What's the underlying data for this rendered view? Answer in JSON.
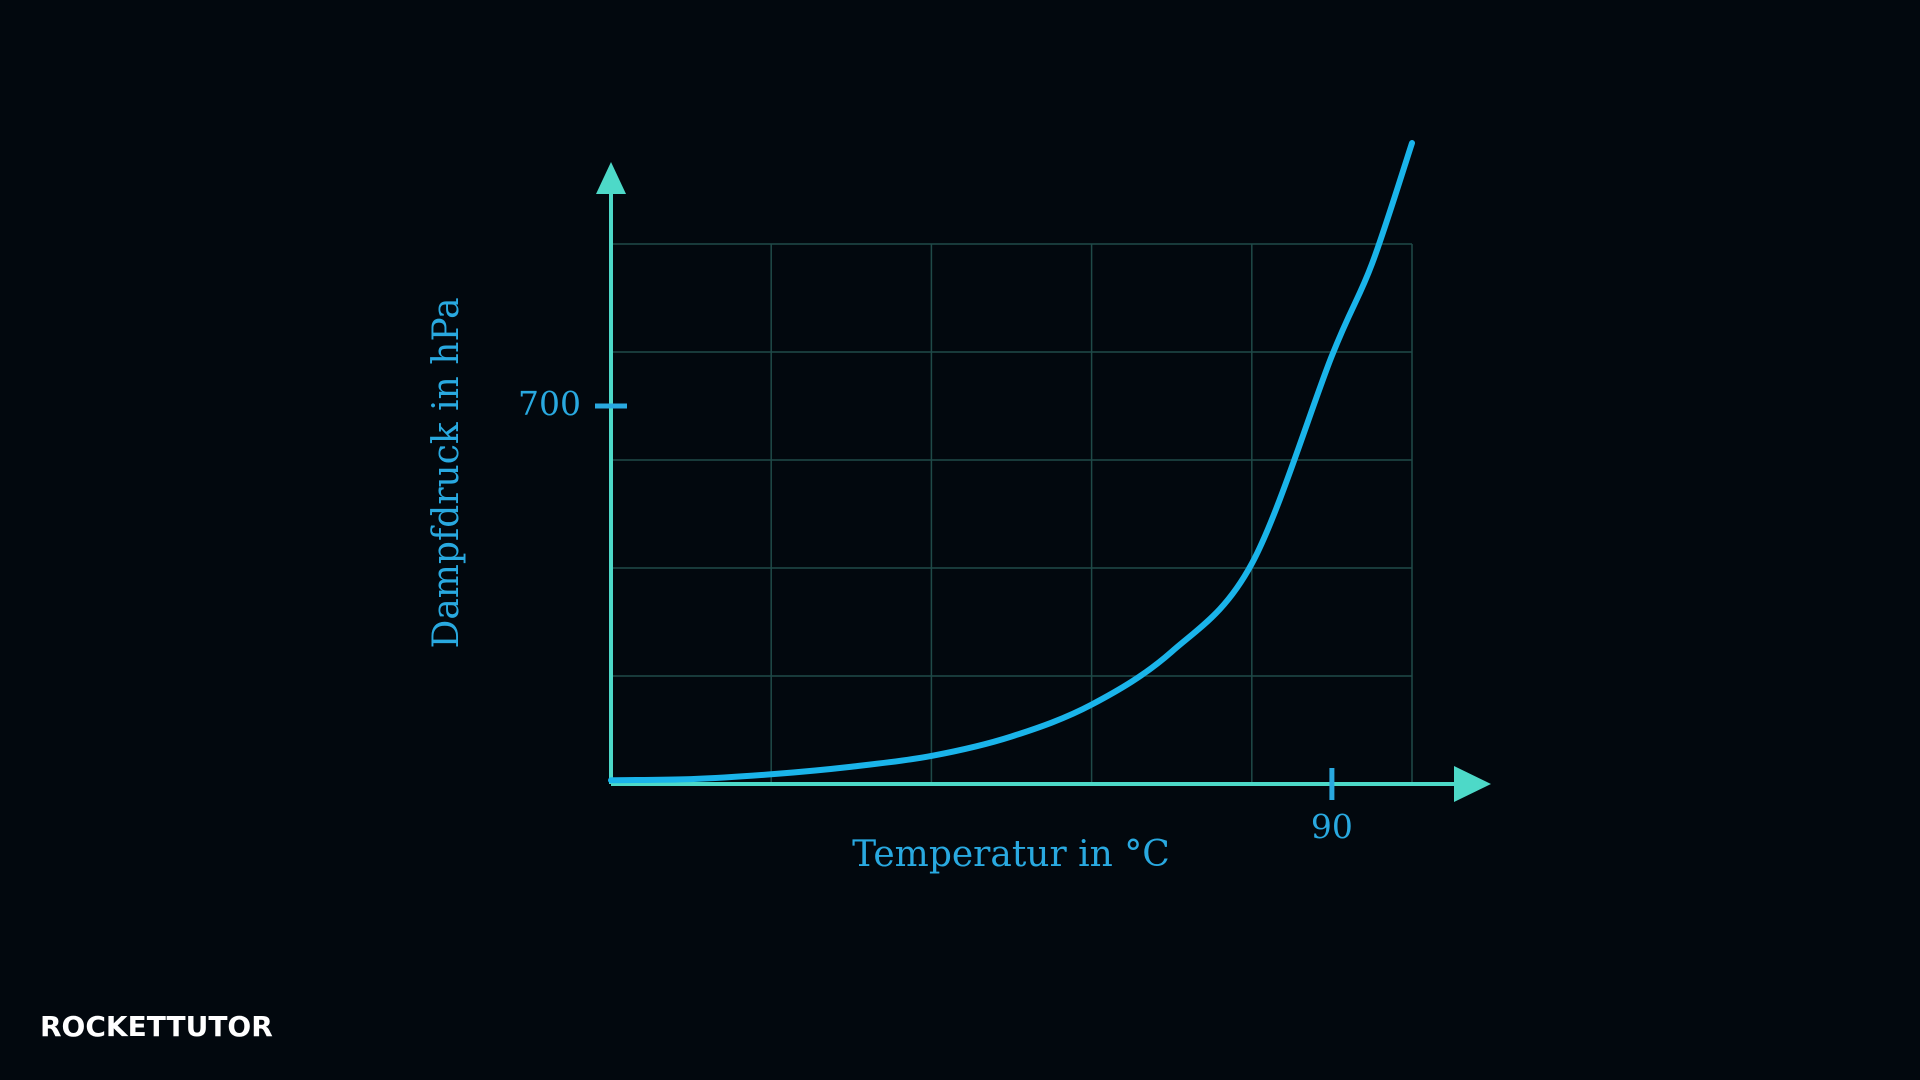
{
  "chart_data": {
    "type": "line",
    "xlabel": "Temperatur in °C",
    "ylabel": "Dampfdruck in hPa",
    "x": [
      0,
      10,
      20,
      30,
      40,
      50,
      60,
      70,
      80,
      90,
      95,
      100
    ],
    "series": [
      {
        "name": "Dampfdruck",
        "color": "#1ab4ea",
        "values": [
          7,
          9,
          18,
          32,
          52,
          88,
          147,
          245,
          408,
          793,
          963,
          1187
        ]
      }
    ],
    "xlim": [
      0,
      100
    ],
    "ylim": [
      0,
      1000
    ],
    "xticks": [
      90
    ],
    "yticks": [
      700
    ],
    "xgrid": [
      0,
      20,
      40,
      60,
      80,
      100
    ],
    "ygrid": [
      0,
      200,
      400,
      600,
      800,
      1000
    ],
    "grid": true,
    "axis_color": "#4dd9c8",
    "grid_color": "#1f4a48",
    "label_color": "#29a9e0"
  },
  "logo": "ROCKETTUTOR"
}
